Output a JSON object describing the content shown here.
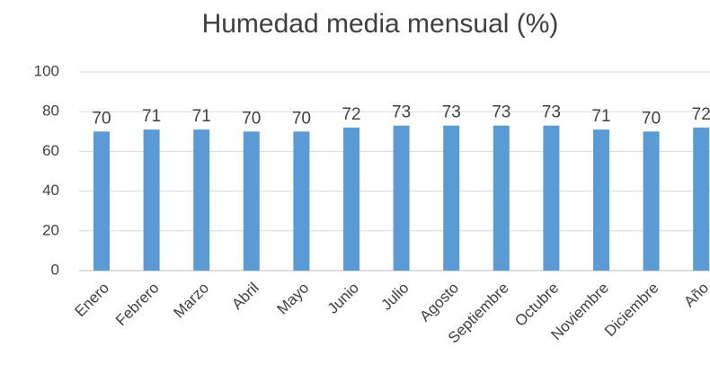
{
  "chart_data": {
    "type": "bar",
    "title": "Humedad media mensual (%)",
    "categories": [
      "Enero",
      "Febrero",
      "Marzo",
      "Abril",
      "Mayo",
      "Junio",
      "Julio",
      "Agosto",
      "Septiembre",
      "Octubre",
      "Noviembre",
      "Diciembre",
      "Año"
    ],
    "values": [
      70,
      71,
      71,
      70,
      70,
      72,
      73,
      73,
      73,
      73,
      71,
      70,
      72
    ],
    "color": "#5b9bd5",
    "ylim": [
      0,
      100
    ],
    "yticks": [
      0,
      20,
      40,
      60,
      80,
      100
    ],
    "grid": true
  }
}
